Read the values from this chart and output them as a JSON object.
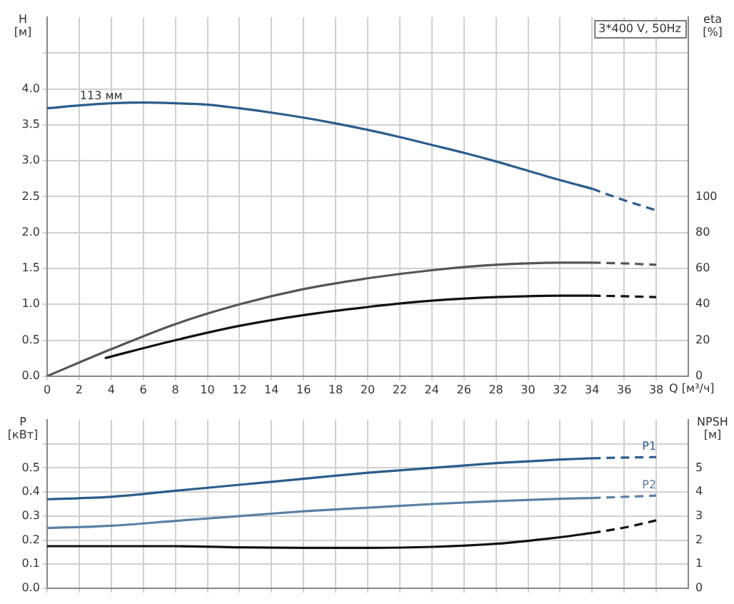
{
  "chart_data": [
    {
      "type": "line",
      "title": "3*400 V, 50Hz",
      "xlabel": "Q [м³/ч]",
      "ylabel": "H [м]",
      "y2label": "eta [%]",
      "xlim": [
        0,
        40
      ],
      "xticks": [
        0,
        2,
        4,
        6,
        8,
        10,
        12,
        14,
        16,
        18,
        20,
        22,
        24,
        26,
        28,
        30,
        32,
        34,
        36,
        38
      ],
      "ylim": [
        0,
        5
      ],
      "yticks": [
        {
          "value": 0,
          "label": "0.0"
        },
        {
          "value": 0.5,
          "label": "0.5"
        },
        {
          "value": 1,
          "label": "1.0"
        },
        {
          "value": 1.5,
          "label": "1.5"
        },
        {
          "value": 2,
          "label": "2.0"
        },
        {
          "value": 2.5,
          "label": "2.5"
        },
        {
          "value": 3,
          "label": "3.0"
        },
        {
          "value": 3.5,
          "label": "3.5"
        },
        {
          "value": 4,
          "label": "4.0"
        },
        {
          "value": 4.5,
          "label": null
        }
      ],
      "y2lim": [
        0,
        200
      ],
      "y2ticks": [
        0,
        20,
        40,
        60,
        80,
        100
      ],
      "grid": true,
      "legend": false,
      "marker": "none",
      "annotations": [
        {
          "text": "113 мм",
          "x": 4,
          "y": 3.8
        }
      ],
      "series": [
        {
          "color": "#2b5c8c",
          "line_style": "solid",
          "x": [
            0,
            2,
            4,
            6,
            8,
            10,
            12,
            14,
            16,
            18,
            20,
            22,
            24,
            26,
            28,
            30,
            32,
            34
          ],
          "values": [
            3.73,
            3.77,
            3.8,
            3.81,
            3.8,
            3.78,
            3.73,
            3.67,
            3.6,
            3.52,
            3.43,
            3.33,
            3.22,
            3.11,
            2.99,
            2.86,
            2.73,
            2.61
          ]
        },
        {
          "color": "#2b5c8c",
          "line_style": "dashed",
          "x": [
            34,
            36,
            38
          ],
          "values": [
            2.61,
            2.45,
            2.31
          ]
        },
        {
          "color": "#555555",
          "axis": "y2",
          "line_style": "solid",
          "x": [
            0,
            4,
            8,
            12,
            16,
            20,
            24,
            28,
            32,
            34
          ],
          "values": [
            0,
            15,
            29,
            40,
            48.5,
            54.5,
            59,
            62,
            63.2,
            63.2
          ]
        },
        {
          "color": "#555555",
          "axis": "y2",
          "line_style": "dashed",
          "x": [
            34,
            36,
            38
          ],
          "values": [
            63.2,
            62.8,
            62
          ]
        },
        {
          "color": "#111111",
          "axis": "y2",
          "line_style": "solid",
          "x": [
            3.6,
            8,
            12,
            16,
            20,
            24,
            28,
            32,
            34
          ],
          "values": [
            10,
            20,
            28,
            34,
            38.5,
            42,
            44,
            44.8,
            44.8
          ]
        },
        {
          "color": "#111111",
          "axis": "y2",
          "line_style": "dashed",
          "x": [
            34,
            36,
            38
          ],
          "values": [
            44.8,
            44.5,
            44
          ]
        }
      ]
    },
    {
      "type": "line",
      "ylabel": "P [кВт]",
      "y2label": "NPSH [м]",
      "xlim": [
        0,
        40
      ],
      "xticks": [
        0,
        2,
        4,
        6,
        8,
        10,
        12,
        14,
        16,
        18,
        20,
        22,
        24,
        26,
        28,
        30,
        32,
        34,
        36,
        38
      ],
      "tick_labels": "y",
      "ylim": [
        0,
        0.7
      ],
      "yticks": [
        {
          "value": 0,
          "label": "0.0"
        },
        {
          "value": 0.1,
          "label": "0.1"
        },
        {
          "value": 0.2,
          "label": "0.2"
        },
        {
          "value": 0.3,
          "label": "0.3"
        },
        {
          "value": 0.4,
          "label": "0.4"
        },
        {
          "value": 0.5,
          "label": "0.5"
        },
        {
          "value": 0.6,
          "label": null
        }
      ],
      "y2lim": [
        0,
        7
      ],
      "y2ticks": [
        0,
        1,
        2,
        3,
        4,
        5
      ],
      "grid": true,
      "legend": false,
      "marker": "none",
      "series": [
        {
          "color": "#2b5c8c",
          "line_style": "solid",
          "x": [
            0,
            4,
            8,
            12,
            16,
            20,
            24,
            28,
            32,
            34
          ],
          "values": [
            0.37,
            0.38,
            0.405,
            0.43,
            0.455,
            0.48,
            0.5,
            0.52,
            0.535,
            0.54
          ]
        },
        {
          "name": "P1",
          "color": "#2b5c8c",
          "line_style": "dashed",
          "x": [
            34,
            36,
            38
          ],
          "values": [
            0.54,
            0.543,
            0.545
          ]
        },
        {
          "color": "#5a80a4",
          "line_style": "solid",
          "x": [
            0,
            4,
            8,
            12,
            16,
            20,
            24,
            28,
            32,
            34
          ],
          "values": [
            0.25,
            0.26,
            0.28,
            0.3,
            0.32,
            0.335,
            0.35,
            0.362,
            0.372,
            0.375
          ]
        },
        {
          "name": "P2",
          "color": "#5a80a4",
          "line_style": "dashed",
          "x": [
            34,
            36,
            38
          ],
          "values": [
            0.375,
            0.38,
            0.385
          ]
        },
        {
          "color": "#111111",
          "axis": "y2",
          "line_style": "solid",
          "x": [
            0,
            4,
            8,
            12,
            16,
            20,
            24,
            28,
            30,
            32,
            34
          ],
          "values": [
            1.75,
            1.75,
            1.75,
            1.7,
            1.68,
            1.68,
            1.72,
            1.85,
            1.97,
            2.12,
            2.3
          ]
        },
        {
          "color": "#111111",
          "axis": "y2",
          "line_style": "dashed",
          "x": [
            34,
            36,
            38
          ],
          "values": [
            2.3,
            2.52,
            2.82
          ]
        }
      ]
    }
  ]
}
